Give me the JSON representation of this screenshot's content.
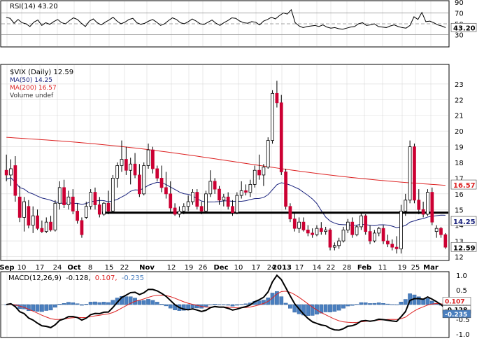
{
  "colors": {
    "frame": "#000000",
    "grid": "#d9d9d9",
    "up": "#ffffff",
    "down": "#cc0033",
    "ma50": "#1a237e",
    "ma200": "#dd2222",
    "macd": "#000000",
    "signal": "#dd2222",
    "histogram": "#4a7fbf",
    "rsi": "#000000",
    "support": "#000000"
  },
  "chart_data": [
    {
      "panel": "rsi",
      "type": "line",
      "title": "RSI(14) 43.20",
      "ylim": [
        10,
        90
      ],
      "yticks": [
        "90",
        "70",
        "50",
        "30"
      ],
      "reference_lines": [
        70,
        50,
        30
      ],
      "last_label": "43.20",
      "values": [
        62,
        60,
        51,
        58,
        52,
        50,
        45,
        53,
        57,
        47,
        52,
        49,
        54,
        58,
        52,
        50,
        56,
        61,
        58,
        51,
        45,
        55,
        59,
        52,
        48,
        53,
        57,
        62,
        55,
        50,
        53,
        58,
        60,
        52,
        49,
        51,
        55,
        58,
        53,
        47,
        50,
        56,
        61,
        58,
        52,
        50,
        54,
        59,
        55,
        50,
        49,
        53,
        57,
        51,
        47,
        52,
        56,
        61,
        60,
        55,
        52,
        51,
        54,
        53,
        48,
        55,
        58,
        62,
        59,
        65,
        70,
        68,
        76,
        52,
        46,
        43,
        45,
        46,
        47,
        45,
        48,
        44,
        42,
        43,
        41,
        40,
        42,
        44,
        45,
        50,
        52,
        47,
        48,
        50,
        45,
        44,
        43,
        46,
        48,
        45,
        43,
        42,
        47,
        63,
        58,
        71,
        54,
        55,
        52,
        48,
        46,
        43
      ]
    },
    {
      "panel": "price",
      "type": "candlestick",
      "title": "$VIX (Daily) 12.59",
      "legend": [
        "MA(50) 14.25",
        "MA(200) 16.57",
        "Volume undef"
      ],
      "ylim": [
        11.8,
        24.2
      ],
      "yticks": [
        "23",
        "22",
        "21",
        "20",
        "19",
        "18",
        "17",
        "16",
        "15",
        "14",
        "13",
        "12"
      ],
      "x_labels": [
        "Sep",
        "10",
        "17",
        "24",
        "Oct",
        "8",
        "15",
        "22",
        "Nov",
        "12",
        "19",
        "26",
        "Dec",
        "10",
        "17",
        "24",
        "2013",
        "17",
        "14",
        "22",
        "28",
        "Feb",
        "11",
        "19",
        "25",
        "Mar"
      ],
      "support_level": 14.8,
      "ma50_last": "14.25",
      "ma200_last": "16.57",
      "close_last": "12.59",
      "candles": [
        [
          17.5,
          18.5,
          16.8,
          17.2
        ],
        [
          17.2,
          18.2,
          16.5,
          17.6
        ],
        [
          17.8,
          18.4,
          15.5,
          15.9
        ],
        [
          15.8,
          16.5,
          14.2,
          14.5
        ],
        [
          14.5,
          15.8,
          13.6,
          15.5
        ],
        [
          15.2,
          15.6,
          13.8,
          14.0
        ],
        [
          14.0,
          15.2,
          13.5,
          14.6
        ],
        [
          14.6,
          15.0,
          13.7,
          13.8
        ],
        [
          13.8,
          14.3,
          13.5,
          13.6
        ],
        [
          13.6,
          14.5,
          13.5,
          14.2
        ],
        [
          14.2,
          14.6,
          13.6,
          13.7
        ],
        [
          13.7,
          15.6,
          13.6,
          15.4
        ],
        [
          15.4,
          16.8,
          15.0,
          16.4
        ],
        [
          16.4,
          16.9,
          15.1,
          15.3
        ],
        [
          15.3,
          16.2,
          15.0,
          15.8
        ],
        [
          15.8,
          16.3,
          14.7,
          14.9
        ],
        [
          14.9,
          15.4,
          14.1,
          14.3
        ],
        [
          14.3,
          14.5,
          13.2,
          13.4
        ],
        [
          14.5,
          15.5,
          14.4,
          15.2
        ],
        [
          15.2,
          16.3,
          15.0,
          16.1
        ],
        [
          16.1,
          16.4,
          15.0,
          15.3
        ],
        [
          15.3,
          15.8,
          14.5,
          14.7
        ],
        [
          14.7,
          15.5,
          14.6,
          15.4
        ],
        [
          15.4,
          16.2,
          14.7,
          14.9
        ],
        [
          14.9,
          17.2,
          14.8,
          17.0
        ],
        [
          17.0,
          18.0,
          16.4,
          17.8
        ],
        [
          17.8,
          19.4,
          17.4,
          18.2
        ],
        [
          18.2,
          19.0,
          17.2,
          17.5
        ],
        [
          17.5,
          18.3,
          16.6,
          17.9
        ],
        [
          17.9,
          18.6,
          17.0,
          17.2
        ],
        [
          17.2,
          17.9,
          15.8,
          16.0
        ],
        [
          16.0,
          18.0,
          15.9,
          17.8
        ],
        [
          17.8,
          19.2,
          17.6,
          18.8
        ],
        [
          18.8,
          19.0,
          17.3,
          17.6
        ],
        [
          17.6,
          17.8,
          16.8,
          17.0
        ],
        [
          17.0,
          17.8,
          16.1,
          16.4
        ],
        [
          16.4,
          17.4,
          15.7,
          16.0
        ],
        [
          16.0,
          16.8,
          14.8,
          15.1
        ],
        [
          15.1,
          15.4,
          14.6,
          14.7
        ],
        [
          14.7,
          15.2,
          14.5,
          14.9
        ],
        [
          14.9,
          15.4,
          14.7,
          15.2
        ],
        [
          15.2,
          15.9,
          14.9,
          15.5
        ],
        [
          15.5,
          16.3,
          15.3,
          16.1
        ],
        [
          16.1,
          16.3,
          15.0,
          15.2
        ],
        [
          15.2,
          15.5,
          14.7,
          14.9
        ],
        [
          14.9,
          16.2,
          14.8,
          16.0
        ],
        [
          16.0,
          17.5,
          15.8,
          16.8
        ],
        [
          16.8,
          17.0,
          16.0,
          16.3
        ],
        [
          16.3,
          16.5,
          15.3,
          15.6
        ],
        [
          15.6,
          16.0,
          15.2,
          15.8
        ],
        [
          15.8,
          16.1,
          15.0,
          15.2
        ],
        [
          15.2,
          15.6,
          14.6,
          14.8
        ],
        [
          14.8,
          16.1,
          14.7,
          15.9
        ],
        [
          15.9,
          16.8,
          15.7,
          16.2
        ],
        [
          16.2,
          16.6,
          15.9,
          16.1
        ],
        [
          16.1,
          16.9,
          15.8,
          16.6
        ],
        [
          16.6,
          17.8,
          16.4,
          17.5
        ],
        [
          17.5,
          18.5,
          16.9,
          17.2
        ],
        [
          17.2,
          17.9,
          16.5,
          17.7
        ],
        [
          17.7,
          19.6,
          17.6,
          19.4
        ],
        [
          19.4,
          22.6,
          19.2,
          22.4
        ],
        [
          22.4,
          23.2,
          21.5,
          21.8
        ],
        [
          21.8,
          22.3,
          17.2,
          17.4
        ],
        [
          17.4,
          17.6,
          15.0,
          15.2
        ],
        [
          15.2,
          15.4,
          14.2,
          14.4
        ],
        [
          14.4,
          14.8,
          13.6,
          13.8
        ],
        [
          13.8,
          14.5,
          13.5,
          14.2
        ],
        [
          14.2,
          14.5,
          13.6,
          13.7
        ],
        [
          13.7,
          14.0,
          13.3,
          13.5
        ],
        [
          13.5,
          13.8,
          13.2,
          13.4
        ],
        [
          13.4,
          14.0,
          13.3,
          13.8
        ],
        [
          13.8,
          14.2,
          13.4,
          13.6
        ],
        [
          13.6,
          13.9,
          13.4,
          13.7
        ],
        [
          13.7,
          13.8,
          12.4,
          12.6
        ],
        [
          12.6,
          12.9,
          12.4,
          12.7
        ],
        [
          12.7,
          13.2,
          12.5,
          13.0
        ],
        [
          13.0,
          13.9,
          12.9,
          13.7
        ],
        [
          13.7,
          14.4,
          13.5,
          14.2
        ],
        [
          14.2,
          14.5,
          13.2,
          13.4
        ],
        [
          13.4,
          14.0,
          13.3,
          13.9
        ],
        [
          13.9,
          14.8,
          13.7,
          14.6
        ],
        [
          14.6,
          14.7,
          13.4,
          13.6
        ],
        [
          13.6,
          14.0,
          12.8,
          13.0
        ],
        [
          13.0,
          13.7,
          12.9,
          13.5
        ],
        [
          13.5,
          13.9,
          13.3,
          13.8
        ],
        [
          13.8,
          14.0,
          12.8,
          13.0
        ],
        [
          13.0,
          13.4,
          12.6,
          12.8
        ],
        [
          12.8,
          13.1,
          12.4,
          12.6
        ],
        [
          12.6,
          13.3,
          12.2,
          12.5
        ],
        [
          12.5,
          15.3,
          12.2,
          14.9
        ],
        [
          14.9,
          16.0,
          14.6,
          15.6
        ],
        [
          15.6,
          19.4,
          15.4,
          19.0
        ],
        [
          19.0,
          19.2,
          15.4,
          15.6
        ],
        [
          15.6,
          16.3,
          14.7,
          15.0
        ],
        [
          15.0,
          15.5,
          14.5,
          14.7
        ],
        [
          14.7,
          16.3,
          14.6,
          16.1
        ],
        [
          16.1,
          16.4,
          14.0,
          14.2
        ],
        [
          13.6,
          14.0,
          13.2,
          13.8
        ],
        [
          13.8,
          13.9,
          13.2,
          13.4
        ],
        [
          13.4,
          13.5,
          12.5,
          12.6
        ]
      ]
    },
    {
      "panel": "macd",
      "type": "line",
      "title": "MACD(12,26,9) -0.128, 0.107, -0.235",
      "title_parts": [
        "MACD(12,26,9)",
        "-0.128,",
        "0.107,",
        "-0.235"
      ],
      "ylim": [
        -1.1,
        1.1
      ],
      "yticks": [
        "1.0",
        "0.5",
        "0.0",
        "-0.5",
        "-1.0"
      ],
      "last_labels": [
        "0.107",
        "-0.128",
        "-0.235"
      ],
      "series_colors": [
        "#000000",
        "#dd2222",
        "#4a7fbf"
      ]
    }
  ]
}
